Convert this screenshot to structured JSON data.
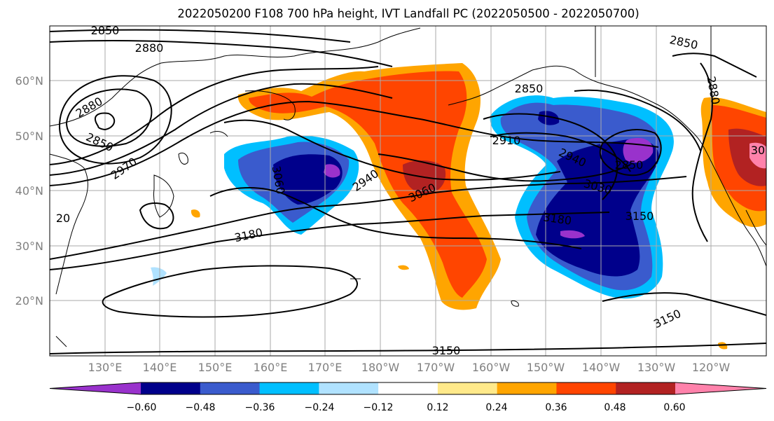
{
  "chart_data": {
    "type": "contour-map",
    "title": "2022050200 F108 700 hPa height, IVT Landfall PC (2022050500 - 2022050700)",
    "lon_ticks": [
      "130°E",
      "140°E",
      "150°E",
      "160°E",
      "170°E",
      "180°W",
      "170°W",
      "160°W",
      "150°W",
      "140°W",
      "130°W",
      "120°W"
    ],
    "lat_ticks": [
      "60°N",
      "50°N",
      "40°N",
      "30°N",
      "20°N"
    ],
    "lat_values": [
      60,
      50,
      40,
      30,
      20
    ],
    "lon_range": [
      120,
      250
    ],
    "lat_range": [
      10,
      70
    ],
    "grid": true,
    "colorbar": {
      "ticks": [
        "−0.60",
        "−0.48",
        "−0.36",
        "−0.24",
        "−0.12",
        "0.12",
        "0.24",
        "0.36",
        "0.48",
        "0.60"
      ],
      "colors": [
        "#9932cc",
        "#00008b",
        "#3a5bcd",
        "#00bfff",
        "#b0e2ff",
        "#ffffff",
        "#ffe98a",
        "#ffa500",
        "#ff4500",
        "#b22222",
        "#ff82ab"
      ],
      "extend": "both"
    },
    "height_contour_labels": [
      "2850",
      "2880",
      "2880",
      "2850",
      "2970",
      "3060",
      "2940",
      "3060",
      "3180",
      "2910",
      "2850",
      "2940",
      "3030",
      "2850",
      "3150",
      "3180",
      "2850",
      "2880",
      "3150",
      "3150",
      "20",
      "30"
    ]
  }
}
